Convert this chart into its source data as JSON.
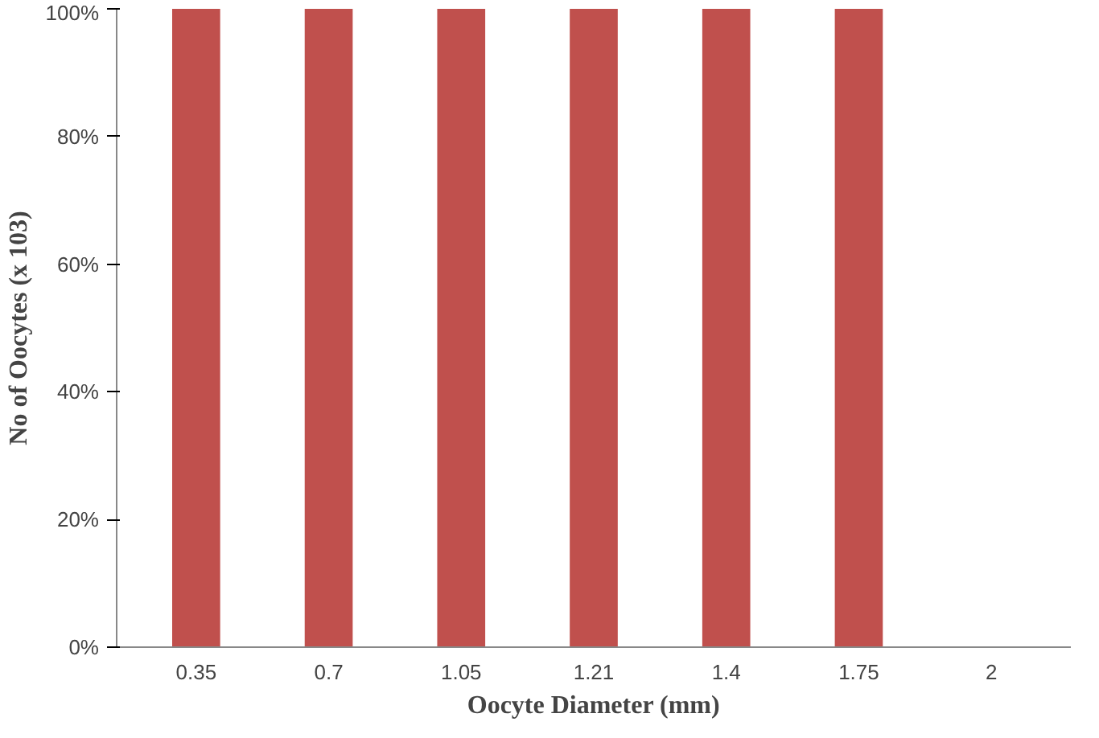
{
  "chart_data": {
    "type": "bar",
    "xlabel": "Oocyte Diameter (mm)",
    "ylabel": "No of Oocytes (x 103)",
    "categories": [
      "0.35",
      "0.7",
      "1.05",
      "1.21",
      "1.4",
      "1.75",
      "2"
    ],
    "values": [
      100,
      100,
      100,
      100,
      100,
      100,
      0
    ],
    "color": "#c0504d",
    "ylim": [
      0,
      100
    ],
    "yticks": [
      {
        "value": 0,
        "label": "0%"
      },
      {
        "value": 20,
        "label": "20%"
      },
      {
        "value": 40,
        "label": "40%"
      },
      {
        "value": 60,
        "label": "60%"
      },
      {
        "value": 80,
        "label": "80%"
      },
      {
        "value": 100,
        "label": "100%"
      }
    ],
    "grid": false
  }
}
